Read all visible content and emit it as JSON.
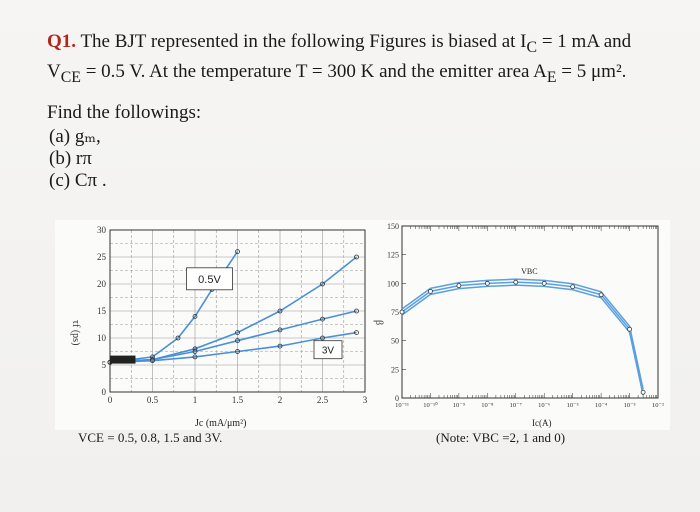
{
  "question": {
    "number": "Q1.",
    "line1": "The BJT represented in the following Figures is biased at I",
    "line1_sub": "C",
    "line1_tail": " = 1 mA and",
    "line2_pre": "V",
    "line2_sub": "CE",
    "line2_mid": " = 0.5 V. At the temperature T = 300 K and the emitter area A",
    "line2_sub2": "E",
    "line2_tail": " = 5 μm².",
    "find_heading": "Find the followings:",
    "items": [
      "(a) gₘ,",
      "(b) rπ",
      "(c) Cπ ."
    ]
  },
  "left_figure": {
    "ylabel": "τf (ps)",
    "xlabel": "Jc (mA/μm²)",
    "annotation_top": "0.5V",
    "annotation_bottom": "3V",
    "caption": "VCE = 0.5, 0.8, 1.5 and 3V.",
    "ytick_labels": [
      "0",
      "5",
      "10",
      "15",
      "20",
      "25",
      "30"
    ],
    "xtick_labels": [
      "0",
      "0.5",
      "1",
      "1.5",
      "2",
      "2.5",
      "3"
    ]
  },
  "right_figure": {
    "ylabel": "β",
    "xlabel": "Ic(A)",
    "annotation": "VBC",
    "caption": "(Note: VBC =2, 1 and 0)",
    "ytick_labels": [
      "0",
      "25",
      "50",
      "75",
      "100",
      "125",
      "150"
    ],
    "xtick_labels": [
      "10⁻¹¹",
      "10⁻¹⁰",
      "10⁻⁹",
      "10⁻⁸",
      "10⁻⁷",
      "10⁻⁶",
      "10⁻⁵",
      "10⁻⁴",
      "10⁻³",
      "10⁻²"
    ]
  },
  "chart_data": [
    {
      "type": "line",
      "xlabel": "Jc (mA/μm²)",
      "ylabel": "τf (ps)",
      "xlim": [
        0,
        3
      ],
      "ylim": [
        0,
        30
      ],
      "series": [
        {
          "name": "0.5V",
          "x": [
            0.0,
            0.5,
            0.8,
            1.0,
            1.2,
            1.5
          ],
          "y": [
            5.5,
            6.5,
            10,
            14,
            19,
            26
          ]
        },
        {
          "name": "0.8V",
          "x": [
            0.0,
            0.5,
            1.0,
            1.5,
            2.0,
            2.5,
            2.9
          ],
          "y": [
            5.5,
            6,
            8,
            11,
            15,
            20,
            25
          ]
        },
        {
          "name": "1.5V",
          "x": [
            0.0,
            0.5,
            1.0,
            1.5,
            2.0,
            2.5,
            2.9
          ],
          "y": [
            5.5,
            6,
            7.5,
            9.5,
            11.5,
            13.5,
            15
          ]
        },
        {
          "name": "3V",
          "x": [
            0.0,
            0.5,
            1.0,
            1.5,
            2.0,
            2.5,
            2.9
          ],
          "y": [
            5.5,
            5.8,
            6.5,
            7.5,
            8.5,
            10,
            11
          ]
        }
      ]
    },
    {
      "type": "line",
      "xlabel": "Ic(A)",
      "ylabel": "β",
      "x_scale": "log",
      "xlim": [
        1e-11,
        0.01
      ],
      "ylim": [
        0,
        150
      ],
      "series": [
        {
          "name": "VBC",
          "x": [
            1e-11,
            1e-10,
            1e-09,
            1e-08,
            1e-07,
            1e-06,
            1e-05,
            0.0001,
            0.001,
            0.003
          ],
          "y": [
            75,
            93,
            98,
            100,
            101,
            100,
            97,
            90,
            60,
            5
          ]
        }
      ]
    }
  ]
}
